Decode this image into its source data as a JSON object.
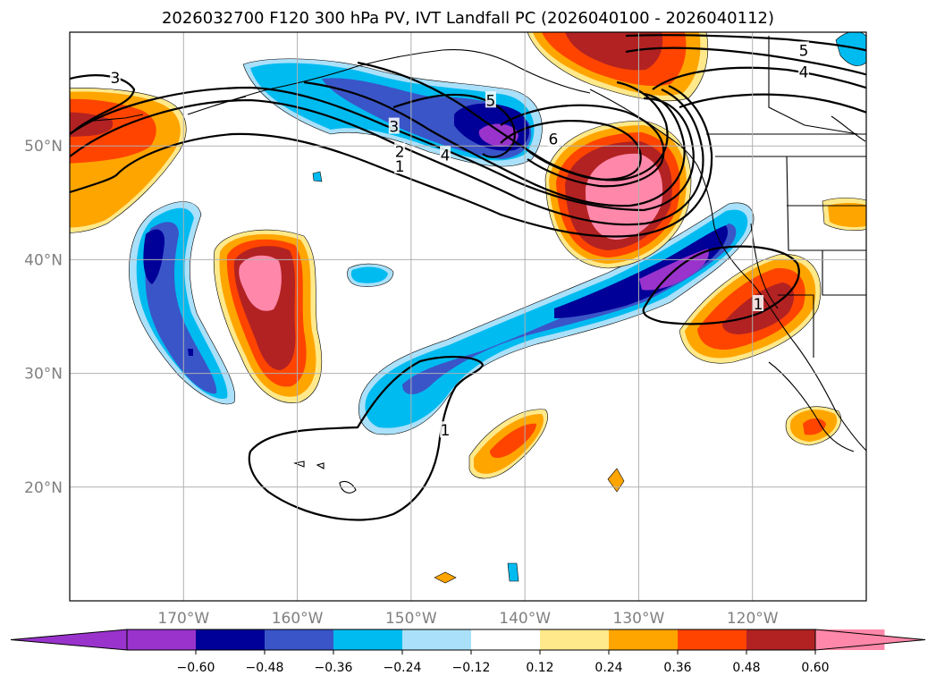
{
  "title": "2026032700 F120 300 hPa PV, IVT Landfall PC (2026040100 - 2026040112)",
  "map": {
    "lon_range": [
      -180,
      -110
    ],
    "lat_range": [
      10,
      60
    ],
    "lon_ticks": [
      {
        "value": -170,
        "label": "170°W"
      },
      {
        "value": -160,
        "label": "160°W"
      },
      {
        "value": -150,
        "label": "150°W"
      },
      {
        "value": -140,
        "label": "140°W"
      },
      {
        "value": -130,
        "label": "130°W"
      },
      {
        "value": -120,
        "label": "120°W"
      }
    ],
    "lat_ticks": [
      {
        "value": 50,
        "label": "50°N"
      },
      {
        "value": 40,
        "label": "40°N"
      },
      {
        "value": 30,
        "label": "30°N"
      },
      {
        "value": 20,
        "label": "20°N"
      }
    ],
    "gridlines": true
  },
  "colorbar": {
    "colors": [
      "#9933cc",
      "#000099",
      "#3a55c8",
      "#00bbf0",
      "#aae0fa",
      "#ffffff",
      "#ffe98a",
      "#ffa500",
      "#ff4400",
      "#b22222",
      "#ff88aa"
    ],
    "ticks": [
      {
        "value": -0.6,
        "label": "−0.60"
      },
      {
        "value": -0.48,
        "label": "−0.48"
      },
      {
        "value": -0.36,
        "label": "−0.36"
      },
      {
        "value": -0.24,
        "label": "−0.24"
      },
      {
        "value": -0.12,
        "label": "−0.12"
      },
      {
        "value": 0.12,
        "label": "0.12"
      },
      {
        "value": 0.24,
        "label": "0.24"
      },
      {
        "value": 0.36,
        "label": "0.36"
      },
      {
        "value": 0.48,
        "label": "0.48"
      },
      {
        "value": 0.6,
        "label": "0.60"
      }
    ]
  },
  "contour_labels": [
    {
      "text": "3",
      "lon": -176,
      "lat": 56
    },
    {
      "text": "3",
      "lon": -151.5,
      "lat": 51.7
    },
    {
      "text": "2",
      "lon": -151,
      "lat": 49.5
    },
    {
      "text": "1",
      "lon": -151,
      "lat": 48.2
    },
    {
      "text": "4",
      "lon": -147,
      "lat": 49.2
    },
    {
      "text": "5",
      "lon": -143,
      "lat": 54
    },
    {
      "text": "6",
      "lon": -137.5,
      "lat": 50.6
    },
    {
      "text": "5",
      "lon": -115.5,
      "lat": 58.4
    },
    {
      "text": "4",
      "lon": -115.5,
      "lat": 56.5
    },
    {
      "text": "1",
      "lon": -119.5,
      "lat": 36.1
    },
    {
      "text": "1",
      "lon": -147,
      "lat": 25
    }
  ]
}
